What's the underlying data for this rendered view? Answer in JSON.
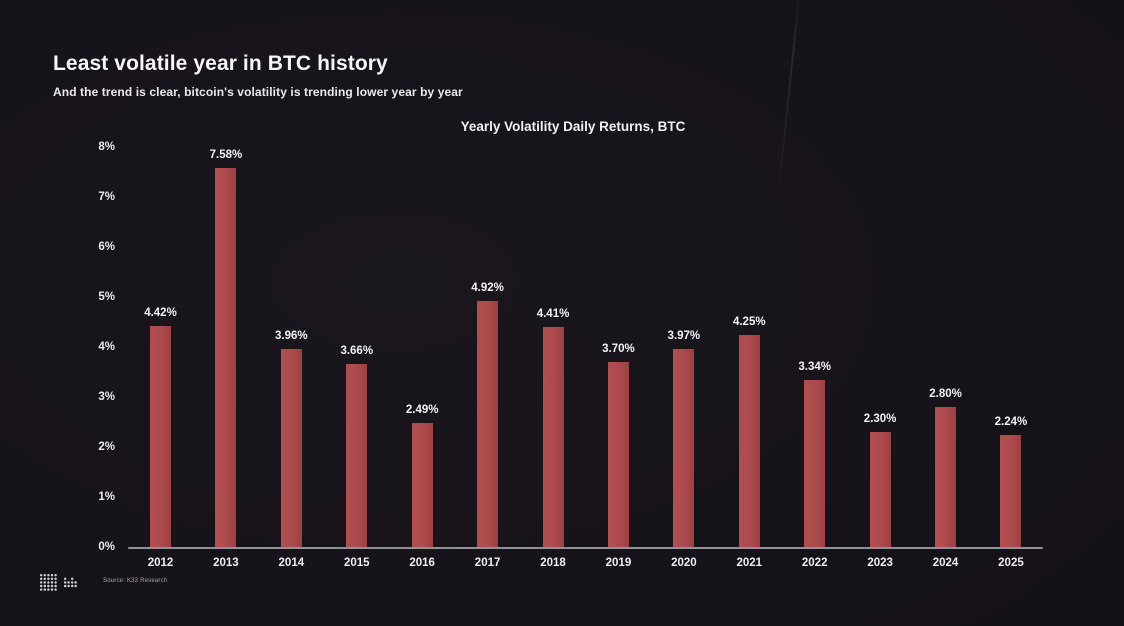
{
  "header": {
    "title": "Least volatile year in BTC history",
    "subtitle": "And the trend is clear, bitcoin's volatility is trending lower year by year"
  },
  "chart_data": {
    "type": "bar",
    "title": "Yearly Volatility Daily Returns, BTC",
    "categories": [
      "2012",
      "2013",
      "2014",
      "2015",
      "2016",
      "2017",
      "2018",
      "2019",
      "2020",
      "2021",
      "2022",
      "2023",
      "2024",
      "2025"
    ],
    "values": [
      4.42,
      7.58,
      3.96,
      3.66,
      2.49,
      4.92,
      4.41,
      3.7,
      3.97,
      4.25,
      3.34,
      2.3,
      2.8,
      2.24
    ],
    "value_labels": [
      "4.42%",
      "7.58%",
      "3.96%",
      "3.66%",
      "2.49%",
      "4.92%",
      "4.41%",
      "3.70%",
      "3.97%",
      "4.25%",
      "3.34%",
      "2.30%",
      "2.80%",
      "2.24%"
    ],
    "xlabel": "",
    "ylabel": "",
    "y_ticks": [
      "0%",
      "1%",
      "2%",
      "3%",
      "4%",
      "5%",
      "6%",
      "7%",
      "8%"
    ],
    "ylim": [
      0,
      8
    ],
    "grid": false,
    "legend": null,
    "bar_color": "#ab4a4c",
    "background_color": "#17131a",
    "text_color": "#f2f0f2"
  },
  "footer": {
    "source": "Source: K33 Research",
    "logo": "k33-dot-matrix-logo"
  }
}
